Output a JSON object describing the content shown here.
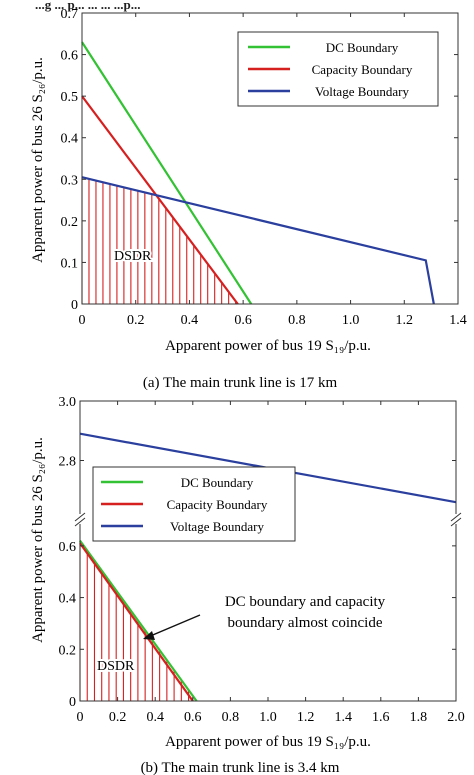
{
  "header_fragment": "...g ... p... ... ... ...p...",
  "chart_data": [
    {
      "type": "line",
      "caption": "(a) The main trunk line is 17 km",
      "xlabel": "Apparent power of bus 19 S₁₉/p.u.",
      "ylabel": "Apparent power of bus 26 S₂₆/p.u.",
      "xlim": [
        0,
        1.4
      ],
      "ylim": [
        0,
        0.7
      ],
      "xticks": [
        "0",
        "0.2",
        "0.4",
        "0.6",
        "0.8",
        "1.0",
        "1.2",
        "1.4"
      ],
      "yticks": [
        "0",
        "0.1",
        "0.2",
        "0.3",
        "0.4",
        "0.5",
        "0.6",
        "0.7"
      ],
      "legend_position": "top-right",
      "region_label": "DSDR",
      "series": [
        {
          "name": "DC Boundary",
          "color": "#33c233",
          "x": [
            0,
            0.63
          ],
          "y": [
            0.63,
            0
          ]
        },
        {
          "name": "Capacity Boundary",
          "color": "#d62020",
          "x": [
            0,
            0.58
          ],
          "y": [
            0.5,
            0
          ]
        },
        {
          "name": "Voltage Boundary",
          "color": "#2a3f9e",
          "x": [
            0,
            1.28,
            1.31
          ],
          "y": [
            0.305,
            0.105,
            0
          ]
        }
      ],
      "hatch_color": "#d62020"
    },
    {
      "type": "line",
      "caption": "(b) The main trunk line is 3.4 km",
      "xlabel": "Apparent power of bus 19 S₁₉/p.u.",
      "ylabel": "Apparent power of bus 26 S₂₆/p.u.",
      "xlim": [
        0,
        2.0
      ],
      "ylim_upper": [
        2.6,
        3.0
      ],
      "ylim_lower": [
        0,
        0.7
      ],
      "broken_y_axis": true,
      "xticks": [
        "0",
        "0.2",
        "0.4",
        "0.6",
        "0.8",
        "1.0",
        "1.2",
        "1.4",
        "1.6",
        "1.8",
        "2.0"
      ],
      "yticks_upper": [
        "2.8",
        "3.0"
      ],
      "yticks_lower": [
        "0",
        "0.2",
        "0.4",
        "0.6"
      ],
      "legend_position": "top-left",
      "region_label": "DSDR",
      "annotation": [
        "DC boundary and capacity",
        "boundary almost coincide"
      ],
      "series": [
        {
          "name": "DC Boundary",
          "color": "#33c233",
          "x": [
            0,
            0.62
          ],
          "y": [
            0.62,
            0
          ]
        },
        {
          "name": "Capacity Boundary",
          "color": "#d62020",
          "x": [
            0,
            0.6
          ],
          "y": [
            0.61,
            0
          ]
        },
        {
          "name": "Voltage Boundary",
          "color": "#2a3f9e",
          "x": [
            0,
            2.0
          ],
          "y": [
            2.89,
            2.66
          ]
        }
      ],
      "hatch_color": "#d62020"
    }
  ]
}
